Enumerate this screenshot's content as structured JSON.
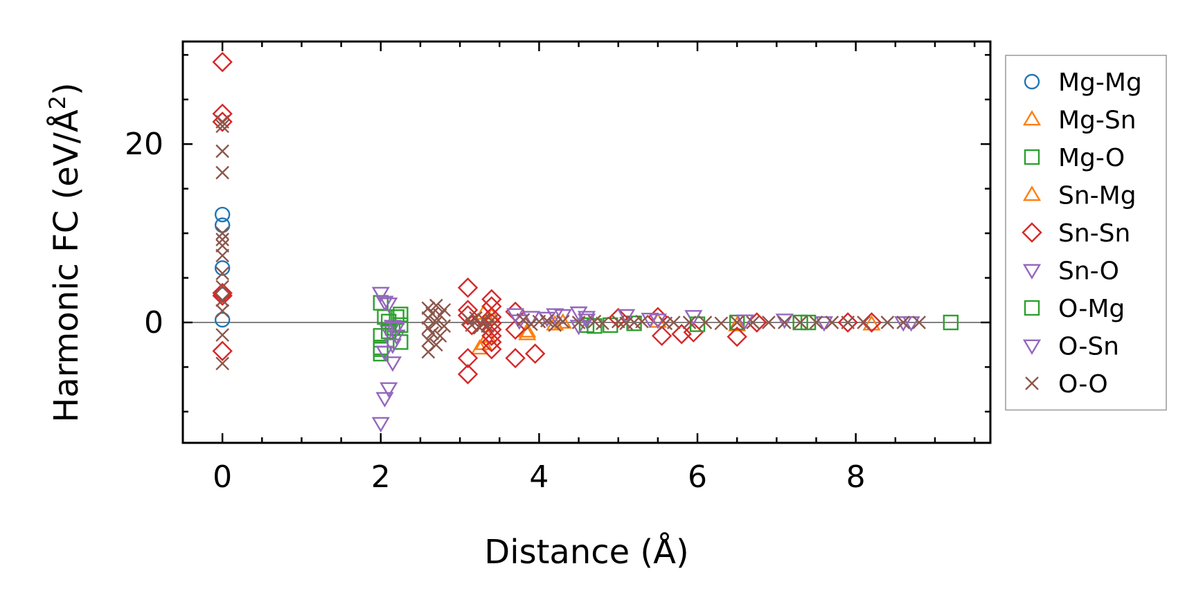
{
  "chart_data": {
    "type": "scatter",
    "xlabel": "Distance (Å)",
    "ylabel": "Harmonic FC (eV/Å²)",
    "ylabel_main": "Harmonic FC (eV/Å",
    "ylabel_sup": "2",
    "ylabel_close": ")",
    "xlim": [
      -0.5,
      9.7
    ],
    "ylim": [
      -13.5,
      31.5
    ],
    "xticks": [
      0,
      2,
      4,
      6,
      8
    ],
    "yticks": [
      0,
      20
    ],
    "x_minor_step": 0.5,
    "y_minor_step": 5,
    "zero_line": true,
    "grid": false,
    "legend_position": "right, outside plot",
    "series": [
      {
        "name": "Mg-Mg",
        "marker": "circle",
        "color": "#1f77b4",
        "x": [
          0,
          0,
          0,
          0,
          0
        ],
        "y": [
          12.1,
          10.9,
          6.1,
          3.1,
          0.3
        ]
      },
      {
        "name": "Mg-Sn",
        "marker": "triangle-up",
        "color": "#ff7f0e",
        "x": [
          3.3,
          3.3,
          3.35,
          3.35,
          3.85,
          4.2,
          6.5,
          8.2
        ],
        "y": [
          1.0,
          -2.4,
          0.4,
          -1.6,
          -1.0,
          -0.2,
          -0.3,
          -0.2
        ]
      },
      {
        "name": "Mg-O",
        "marker": "square",
        "color": "#2ca02c",
        "x": [
          2.0,
          2.0,
          2.0,
          2.05,
          2.1,
          2.15,
          2.2,
          2.25,
          2.25,
          2.0,
          4.6,
          4.9,
          5.2,
          6.5,
          7.4,
          9.2
        ],
        "y": [
          2.2,
          -1.5,
          -3.5,
          0.6,
          0.1,
          -0.6,
          0.6,
          -2.2,
          0.9,
          -2.8,
          -0.3,
          -0.3,
          -0.1,
          0.0,
          0.0,
          0.0
        ]
      },
      {
        "name": "Sn-Mg",
        "marker": "triangle-up",
        "color": "#ff7f0e",
        "x": [
          3.25,
          3.4,
          3.85,
          4.3,
          5.5
        ],
        "y": [
          -2.9,
          0.7,
          -1.3,
          0.0,
          0.1
        ]
      },
      {
        "name": "Sn-Sn",
        "marker": "diamond",
        "color": "#d62728",
        "x": [
          0,
          0,
          0,
          0,
          0,
          0,
          3.1,
          3.1,
          3.1,
          3.1,
          3.1,
          3.15,
          3.4,
          3.4,
          3.4,
          3.4,
          3.4,
          3.4,
          3.4,
          3.4,
          3.7,
          3.7,
          3.7,
          3.95,
          5.0,
          5.5,
          5.55,
          5.8,
          5.95,
          6.5,
          6.75,
          7.9,
          8.2
        ],
        "y": [
          29.2,
          23.4,
          22.5,
          3.3,
          3.0,
          -3.2,
          3.9,
          1.4,
          0.8,
          -4.0,
          -5.8,
          -0.3,
          2.6,
          1.8,
          0.6,
          -0.1,
          -0.8,
          -1.5,
          -2.2,
          -3.0,
          1.2,
          -0.8,
          -4.0,
          -3.5,
          0.5,
          0.6,
          -1.5,
          -1.3,
          -1.1,
          -1.6,
          0.0,
          0.0,
          0.0
        ]
      },
      {
        "name": "Sn-O",
        "marker": "triangle-down",
        "color": "#9467bd",
        "x": [
          2.0,
          2.0,
          2.05,
          2.05,
          2.1,
          2.1,
          2.1,
          2.15,
          2.15,
          2.2,
          3.7,
          3.9,
          4.1,
          4.3,
          4.5,
          4.5,
          4.6,
          5.1,
          5.5,
          5.95,
          6.6,
          7.1
        ],
        "y": [
          3.3,
          -11.3,
          2.3,
          -8.5,
          2.1,
          -7.4,
          -1.0,
          -0.4,
          -4.5,
          -1.5,
          0.9,
          0.6,
          0.5,
          0.8,
          1.1,
          -0.4,
          0.3,
          0.8,
          0.3,
          0.7,
          0.2,
          0.3
        ]
      },
      {
        "name": "O-Mg",
        "marker": "square",
        "color": "#2ca02c",
        "x": [
          2.0,
          2.1,
          2.25,
          4.7,
          6.0,
          7.3
        ],
        "y": [
          -3.0,
          -1.0,
          -0.3,
          -0.4,
          -0.2,
          0.0
        ]
      },
      {
        "name": "O-Sn",
        "marker": "triangle-down",
        "color": "#9467bd",
        "x": [
          2.05,
          2.15,
          2.2,
          3.75,
          4.2,
          4.6,
          5.4,
          7.6,
          8.6,
          8.7
        ],
        "y": [
          -3.3,
          -2.5,
          -0.6,
          0.2,
          0.9,
          0.6,
          0.4,
          0.0,
          0.0,
          0.0
        ]
      },
      {
        "name": "O-O",
        "marker": "x",
        "color": "#8c564b",
        "x": [
          0,
          0,
          0,
          0,
          0,
          0,
          0,
          0,
          0,
          0,
          0,
          0,
          0,
          0,
          2.6,
          2.6,
          2.6,
          2.6,
          2.6,
          2.65,
          2.65,
          2.7,
          2.7,
          2.7,
          2.75,
          2.75,
          2.8,
          2.8,
          3.1,
          3.15,
          3.2,
          3.25,
          3.3,
          3.35,
          3.4,
          3.8,
          3.9,
          4.0,
          4.1,
          4.2,
          4.3,
          4.5,
          4.7,
          4.8,
          5.0,
          5.1,
          5.2,
          5.3,
          5.6,
          5.7,
          5.9,
          6.1,
          6.3,
          6.5,
          6.7,
          6.9,
          7.1,
          7.3,
          7.5,
          7.7,
          7.9,
          8.1,
          8.4,
          8.6,
          8.8
        ],
        "y": [
          22.5,
          22.0,
          19.2,
          16.8,
          10.0,
          8.6,
          7.5,
          5.5,
          4.0,
          2.5,
          1.3,
          -1.4,
          -4.6,
          9.3,
          1.6,
          0.5,
          -0.6,
          -2.0,
          -3.3,
          1.0,
          -1.2,
          1.9,
          0.0,
          -2.5,
          0.8,
          -1.5,
          1.4,
          -0.4,
          0.4,
          -0.3,
          0.5,
          -0.6,
          0.3,
          -0.4,
          0.2,
          0.3,
          -0.2,
          0.1,
          0.2,
          -0.3,
          0.1,
          0.0,
          0.1,
          -0.1,
          0.1,
          -0.1,
          0.0,
          0.1,
          -0.1,
          0.0,
          0.0,
          0.0,
          -0.1,
          0.0,
          0.0,
          0.0,
          0.0,
          0.0,
          0.0,
          0.0,
          0.0,
          0.0,
          0.0,
          0.0,
          0.0
        ]
      }
    ]
  }
}
